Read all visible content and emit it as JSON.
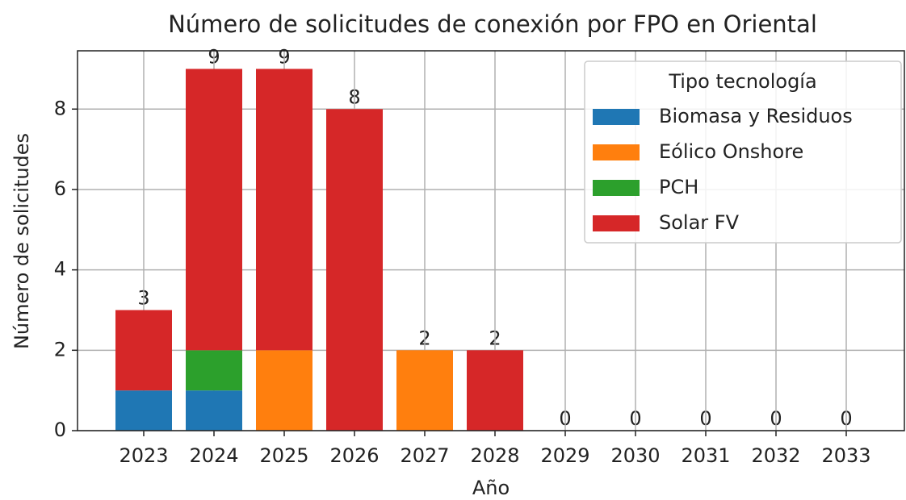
{
  "chart_data": {
    "type": "stacked_bar",
    "title": "Número de solicitudes de conexión por FPO en Oriental",
    "xlabel": "Año",
    "ylabel": "Número de solicitudes",
    "categories": [
      "2023",
      "2024",
      "2025",
      "2026",
      "2027",
      "2028",
      "2029",
      "2030",
      "2031",
      "2032",
      "2033"
    ],
    "series": [
      {
        "name": "Biomasa y Residuos",
        "color": "#1f77b4",
        "values": [
          1,
          1,
          0,
          0,
          0,
          0,
          0,
          0,
          0,
          0,
          0
        ]
      },
      {
        "name": "Eólico Onshore",
        "color": "#ff7f0e",
        "values": [
          0,
          0,
          2,
          0,
          2,
          0,
          0,
          0,
          0,
          0,
          0
        ]
      },
      {
        "name": "PCH",
        "color": "#2ca02c",
        "values": [
          0,
          1,
          0,
          0,
          0,
          0,
          0,
          0,
          0,
          0,
          0
        ]
      },
      {
        "name": "Solar FV",
        "color": "#d62728",
        "values": [
          2,
          7,
          7,
          8,
          0,
          2,
          0,
          0,
          0,
          0,
          0
        ]
      }
    ],
    "totals": [
      3,
      9,
      9,
      8,
      2,
      2,
      0,
      0,
      0,
      0,
      0
    ],
    "legend_title": "Tipo tecnología",
    "legend": "upper right",
    "ylim": [
      0,
      9.45
    ],
    "yticks": [
      0,
      2,
      4,
      6,
      8
    ],
    "grid": true
  }
}
